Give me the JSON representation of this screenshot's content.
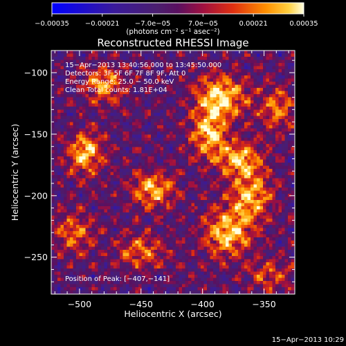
{
  "chart_data": {
    "type": "heatmap",
    "title": "Reconstructed RHESSI Image",
    "xlabel": "Heliocentric X (arcsec)",
    "ylabel": "Heliocentric Y (arcsec)",
    "xlim": [
      -523,
      -325
    ],
    "ylim": [
      -280,
      -82
    ],
    "x_ticks": [
      -500,
      -450,
      -400,
      -350
    ],
    "y_ticks": [
      -100,
      -150,
      -200,
      -250
    ],
    "x_tick_labels": [
      "−500",
      "−450",
      "−400",
      "−350"
    ],
    "y_tick_labels": [
      "−100",
      "−150",
      "−200",
      "−250"
    ],
    "colorbar": {
      "range": [
        -0.00035,
        0.00035
      ],
      "tick_labels": [
        "−0.00035",
        "−0.00021",
        "−7.0e−05",
        "7.0e−05",
        "0.00021",
        "0.00035"
      ],
      "unit_label": "(photons cm⁻² s⁻¹ asec⁻²)"
    },
    "annotations": [
      "15−Apr−2013 13:40:56.000 to 13:45:50.000",
      "Detectors: 3F 5F 6F 7F 8F 9F, Att 0",
      "Energy Range: 25.0 − 50.0 keV",
      "Clean     Total counts: 1.81E+04"
    ],
    "peak_label": "Position of Peak: [−407,−141]",
    "footer": "15−Apr−2013 10:29",
    "sources": [
      {
        "x": -385,
        "y": -120,
        "amp": 1.0,
        "sx": 14,
        "sy": 12
      },
      {
        "x": -395,
        "y": -150,
        "amp": 0.9,
        "sx": 10,
        "sy": 14
      },
      {
        "x": -370,
        "y": -170,
        "amp": 0.85,
        "sx": 12,
        "sy": 10
      },
      {
        "x": -360,
        "y": -200,
        "amp": 0.8,
        "sx": 12,
        "sy": 14
      },
      {
        "x": -380,
        "y": -230,
        "amp": 0.9,
        "sx": 14,
        "sy": 14
      },
      {
        "x": -440,
        "y": -195,
        "amp": 0.85,
        "sx": 12,
        "sy": 10
      },
      {
        "x": -495,
        "y": -165,
        "amp": 0.9,
        "sx": 10,
        "sy": 12
      },
      {
        "x": -480,
        "y": -110,
        "amp": 0.75,
        "sx": 12,
        "sy": 10
      },
      {
        "x": -505,
        "y": -230,
        "amp": 0.6,
        "sx": 12,
        "sy": 12
      },
      {
        "x": -450,
        "y": -245,
        "amp": 0.6,
        "sx": 14,
        "sy": 10
      },
      {
        "x": -340,
        "y": -130,
        "amp": 0.65,
        "sx": 10,
        "sy": 12
      },
      {
        "x": -345,
        "y": -265,
        "amp": 0.5,
        "sx": 12,
        "sy": 10
      }
    ]
  }
}
